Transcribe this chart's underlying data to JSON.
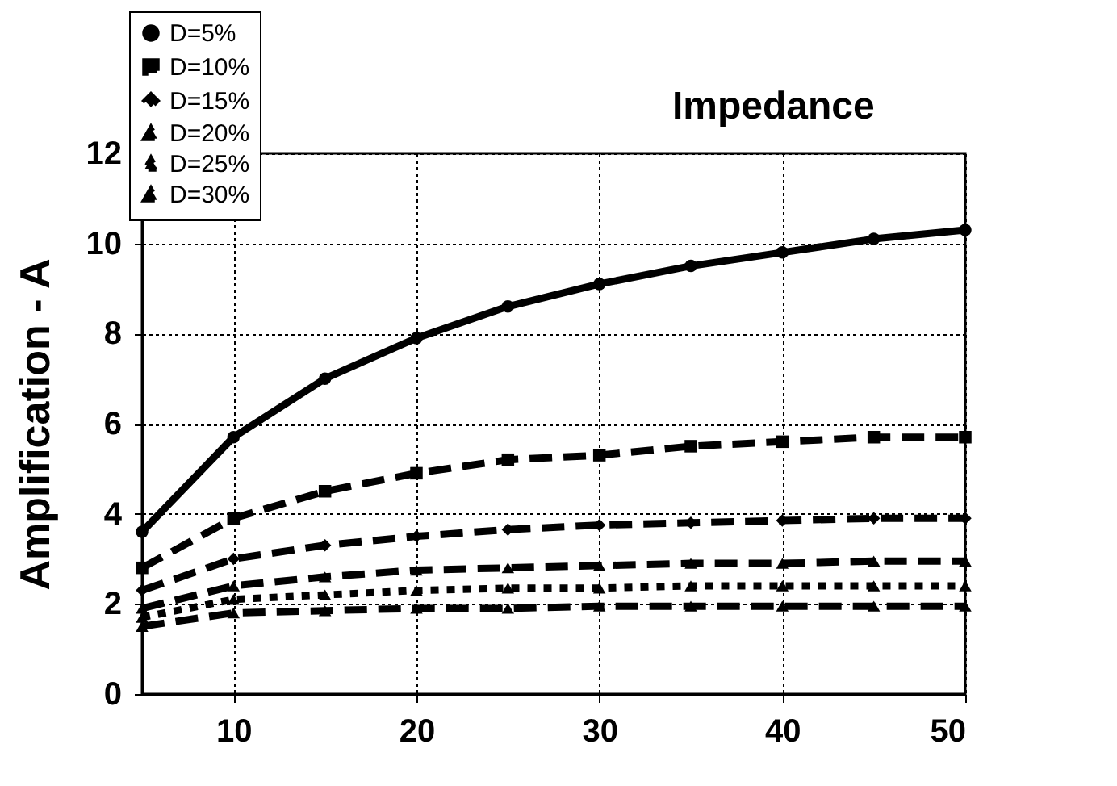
{
  "chart_data": {
    "type": "line",
    "title": "Impedance",
    "ylabel": "Amplification - A",
    "x": [
      5,
      10,
      15,
      20,
      25,
      30,
      35,
      40,
      45,
      50
    ],
    "series": [
      {
        "name": "D=5%",
        "color": "#000000",
        "marker": "circle",
        "line_style": "solid",
        "values": [
          3.6,
          5.7,
          7.0,
          7.9,
          8.6,
          9.1,
          9.5,
          9.8,
          10.1,
          10.3
        ]
      },
      {
        "name": "D=10%",
        "color": "#000000",
        "marker": "square",
        "line_style": "dashed",
        "values": [
          2.8,
          3.9,
          4.5,
          4.9,
          5.2,
          5.3,
          5.5,
          5.6,
          5.7,
          5.7
        ]
      },
      {
        "name": "D=15%",
        "color": "#000000",
        "marker": "diamond",
        "line_style": "dashed",
        "values": [
          2.3,
          3.0,
          3.3,
          3.5,
          3.65,
          3.75,
          3.8,
          3.85,
          3.9,
          3.9
        ]
      },
      {
        "name": "D=20%",
        "color": "#000000",
        "marker": "triangle",
        "line_style": "dashed",
        "values": [
          1.9,
          2.4,
          2.6,
          2.75,
          2.8,
          2.85,
          2.9,
          2.9,
          2.95,
          2.95
        ]
      },
      {
        "name": "D=25%",
        "color": "#000000",
        "marker": "triangle",
        "line_style": "dotted",
        "values": [
          1.7,
          2.1,
          2.2,
          2.3,
          2.35,
          2.35,
          2.4,
          2.4,
          2.4,
          2.4
        ]
      },
      {
        "name": "D=30%",
        "color": "#000000",
        "marker": "triangle",
        "line_style": "dashed",
        "values": [
          1.5,
          1.8,
          1.85,
          1.9,
          1.9,
          1.95,
          1.95,
          1.95,
          1.95,
          1.95
        ]
      }
    ],
    "xlim": [
      5,
      50
    ],
    "xticks": [
      10,
      20,
      30,
      40,
      50
    ],
    "ylim": [
      0,
      12
    ],
    "yticks": [
      0,
      2,
      4,
      6,
      8,
      10,
      12
    ],
    "grid": true,
    "legend": "top left"
  }
}
